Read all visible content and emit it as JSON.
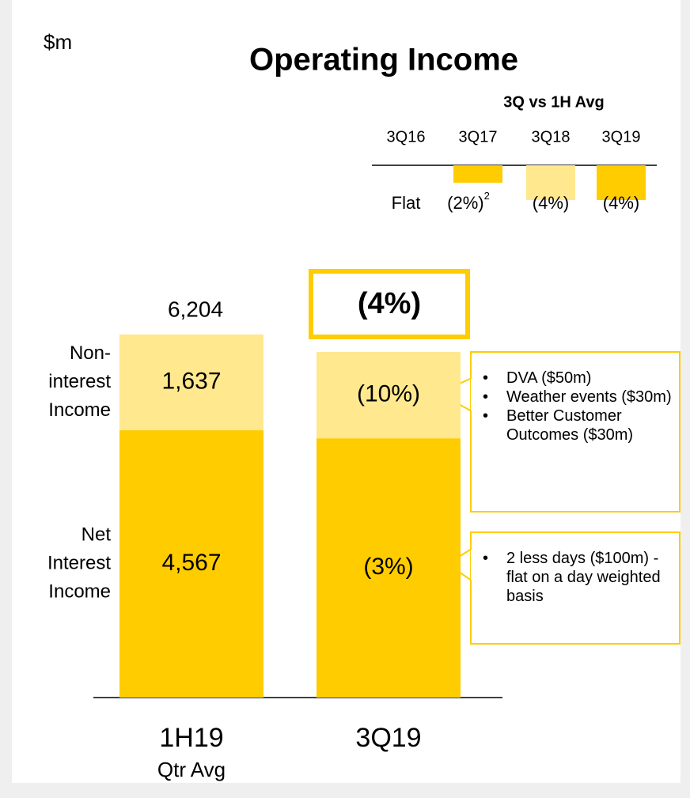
{
  "chart_data": {
    "type": "stacked_bar",
    "unit": "$m",
    "title": "Operating Income",
    "categories": [
      "1H19",
      "3Q19"
    ],
    "category_notes": [
      "Qtr Avg",
      null
    ],
    "series": [
      {
        "name": [
          "Net",
          "Interest",
          "Income"
        ],
        "color": "#ffcc00",
        "values": [
          4567,
          4430
        ],
        "value_labels": [
          "4,567",
          null
        ],
        "change_labels": [
          null,
          "(3%)"
        ]
      },
      {
        "name": [
          "Non-",
          "interest",
          "Income"
        ],
        "color": "#ffe88e",
        "values": [
          1637,
          1475
        ],
        "value_labels": [
          "1,637",
          null
        ],
        "change_labels": [
          null,
          "(10%)"
        ]
      }
    ],
    "totals": [
      6204,
      null
    ],
    "total_labels": [
      "6,204",
      null
    ],
    "total_change": "(4%)",
    "callouts": [
      {
        "series": 1,
        "bullets": [
          "DVA ($50m)",
          "Weather events ($30m)",
          "Better Customer Outcomes ($30m)"
        ]
      },
      {
        "series": 0,
        "bullets": [
          "2 less days ($100m) - flat on a day weighted basis"
        ]
      }
    ],
    "inset": {
      "type": "bar",
      "title": "3Q vs 1H Avg",
      "categories": [
        "3Q16",
        "3Q17",
        "3Q18",
        "3Q19"
      ],
      "values": [
        0,
        -2,
        -4,
        -4
      ],
      "value_labels": [
        "Flat",
        "(2%)",
        "(4%)",
        "(4%)"
      ],
      "footnote_marks": [
        null,
        "2",
        null,
        null
      ],
      "colors": [
        "#ffcc00",
        "#ffcc00",
        "#ffe88e",
        "#ffcc00"
      ]
    }
  }
}
